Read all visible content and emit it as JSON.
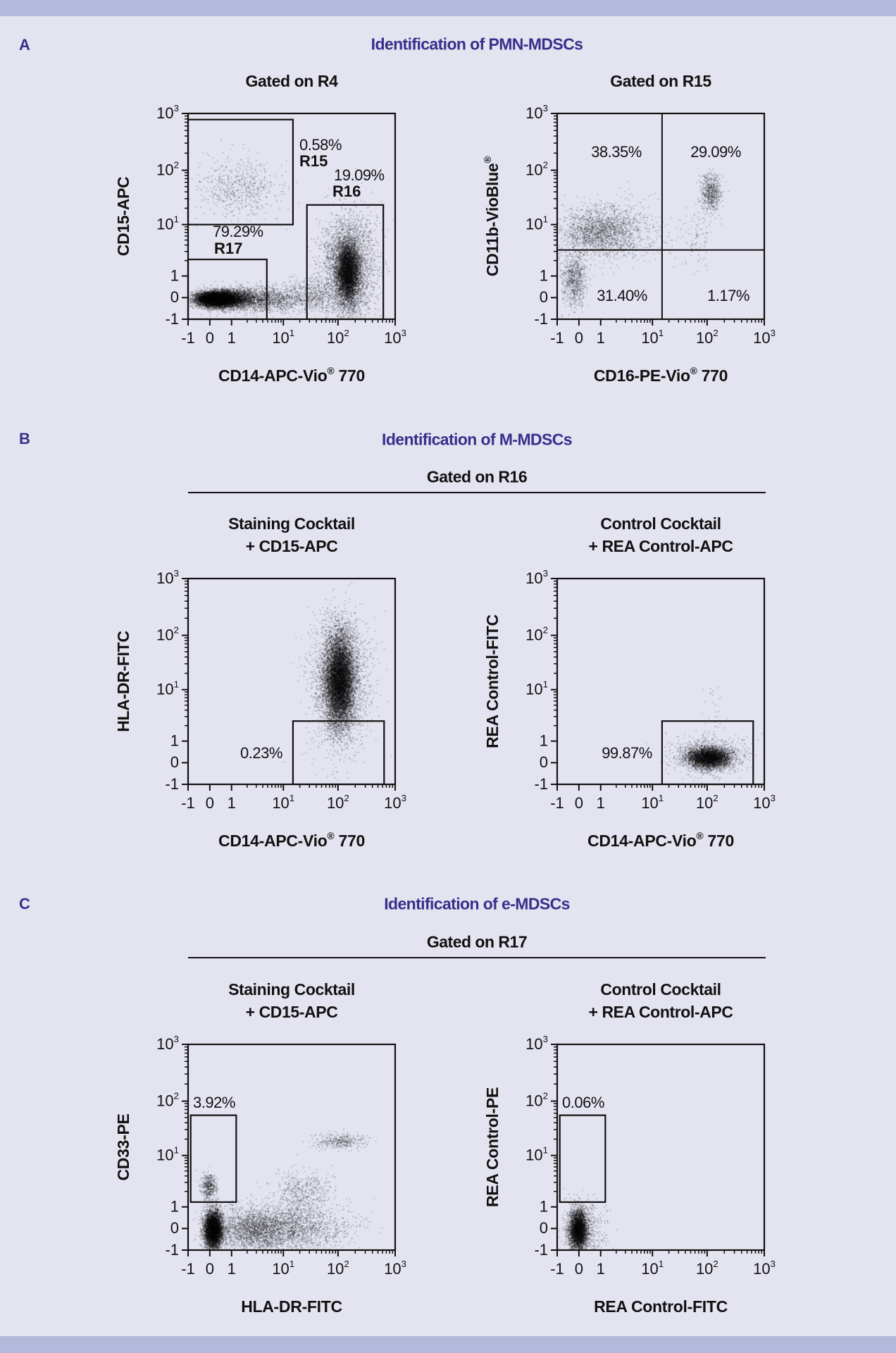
{
  "page": {
    "background": "#e3e4f0",
    "band_color": "#b4b9dc",
    "title_color": "#3b2d8c"
  },
  "sections": [
    {
      "letter": "A",
      "title": "Identification of PMN-MDSCs"
    },
    {
      "letter": "B",
      "title": "Identification of M-MDSCs",
      "gated_on": "Gated on R16"
    },
    {
      "letter": "C",
      "title": "Identification of e-MDSCs",
      "gated_on": "Gated on R17"
    }
  ],
  "chart_data": [
    {
      "panel": "A-left",
      "type": "scatter",
      "title": [
        "Gated on R4"
      ],
      "xlabel": "CD14-APC-Vio® 770",
      "ylabel": "CD15-APC",
      "xticks": [
        "-1",
        "0",
        "1",
        "10¹",
        "10²",
        "10³"
      ],
      "yticks": [
        "-1",
        "0",
        "1",
        "10¹",
        "10²",
        "10³"
      ],
      "xlim": [
        -1,
        1000
      ],
      "ylim": [
        -1,
        1000
      ],
      "scale": "biexponential",
      "gates": [
        {
          "name": "R15",
          "percent": "0.58%",
          "x": [
            -1,
            15
          ],
          "y": [
            10,
            780
          ]
        },
        {
          "name": "R16",
          "percent": "19.09%",
          "x": [
            27,
            620
          ],
          "y": [
            -1,
            23
          ]
        },
        {
          "name": "R17",
          "percent": "79.29%",
          "x": [
            -1,
            4.8
          ],
          "y": [
            -1,
            2.1
          ]
        }
      ]
    },
    {
      "panel": "A-right",
      "type": "scatter",
      "title": [
        "Gated on R15"
      ],
      "xlabel": "CD16-PE-Vio® 770",
      "ylabel": "CD11b-VioBlue®",
      "xticks": [
        "-1",
        "0",
        "1",
        "10¹",
        "10²",
        "10³"
      ],
      "yticks": [
        "-1",
        "0",
        "1",
        "10¹",
        "10²",
        "10³"
      ],
      "xlim": [
        -1,
        1000
      ],
      "ylim": [
        -1,
        1000
      ],
      "scale": "biexponential",
      "quadrant": {
        "x": 15,
        "y": 3.2,
        "upper_left": "38.35%",
        "upper_right": "29.09%",
        "lower_left": "31.40%",
        "lower_right": "1.17%"
      }
    },
    {
      "panel": "B-left",
      "type": "scatter",
      "title": [
        "Staining Cocktail",
        "+ CD15-APC"
      ],
      "xlabel": "CD14-APC-Vio® 770",
      "ylabel": "HLA-DR-FITC",
      "xticks": [
        "-1",
        "0",
        "1",
        "10¹",
        "10²",
        "10³"
      ],
      "yticks": [
        "-1",
        "0",
        "1",
        "10¹",
        "10²",
        "10³"
      ],
      "xlim": [
        -1,
        1000
      ],
      "ylim": [
        -1,
        1000
      ],
      "scale": "biexponential",
      "gates": [
        {
          "name": "",
          "percent": "0.23%",
          "x": [
            15,
            640
          ],
          "y": [
            -1,
            2.45
          ]
        }
      ]
    },
    {
      "panel": "B-right",
      "type": "scatter",
      "title": [
        "Control Cocktail",
        "+ REA Control-APC"
      ],
      "xlabel": "CD14-APC-Vio® 770",
      "ylabel": "REA Control-FITC",
      "xticks": [
        "-1",
        "0",
        "1",
        "10¹",
        "10²",
        "10³"
      ],
      "yticks": [
        "-1",
        "0",
        "1",
        "10¹",
        "10²",
        "10³"
      ],
      "xlim": [
        -1,
        1000
      ],
      "ylim": [
        -1,
        1000
      ],
      "scale": "biexponential",
      "gates": [
        {
          "name": "",
          "percent": "99.87%",
          "x": [
            15,
            640
          ],
          "y": [
            -1,
            2.45
          ]
        }
      ]
    },
    {
      "panel": "C-left",
      "type": "scatter",
      "title": [
        "Staining Cocktail",
        "+ CD15-APC"
      ],
      "xlabel": "HLA-DR-FITC",
      "ylabel": "CD33-PE",
      "xticks": [
        "-1",
        "0",
        "1",
        "10¹",
        "10²",
        "10³"
      ],
      "yticks": [
        "-1",
        "0",
        "1",
        "10¹",
        "10²",
        "10³"
      ],
      "xlim": [
        -1,
        1000
      ],
      "ylim": [
        -1,
        1000
      ],
      "scale": "biexponential",
      "gates": [
        {
          "name": "",
          "percent": "3.92%",
          "x": [
            -0.88,
            1.23
          ],
          "y": [
            1.24,
            55
          ]
        }
      ]
    },
    {
      "panel": "C-right",
      "type": "scatter",
      "title": [
        "Control Cocktail",
        "+ REA Control-APC"
      ],
      "xlabel": "REA Control-FITC",
      "ylabel": "REA Control-PE",
      "xticks": [
        "-1",
        "0",
        "1",
        "10¹",
        "10²",
        "10³"
      ],
      "yticks": [
        "-1",
        "0",
        "1",
        "10¹",
        "10²",
        "10³"
      ],
      "xlim": [
        -1,
        1000
      ],
      "ylim": [
        -1,
        1000
      ],
      "scale": "biexponential",
      "gates": [
        {
          "name": "",
          "percent": "0.06%",
          "x": [
            -0.88,
            1.23
          ],
          "y": [
            1.24,
            55
          ]
        }
      ]
    }
  ]
}
